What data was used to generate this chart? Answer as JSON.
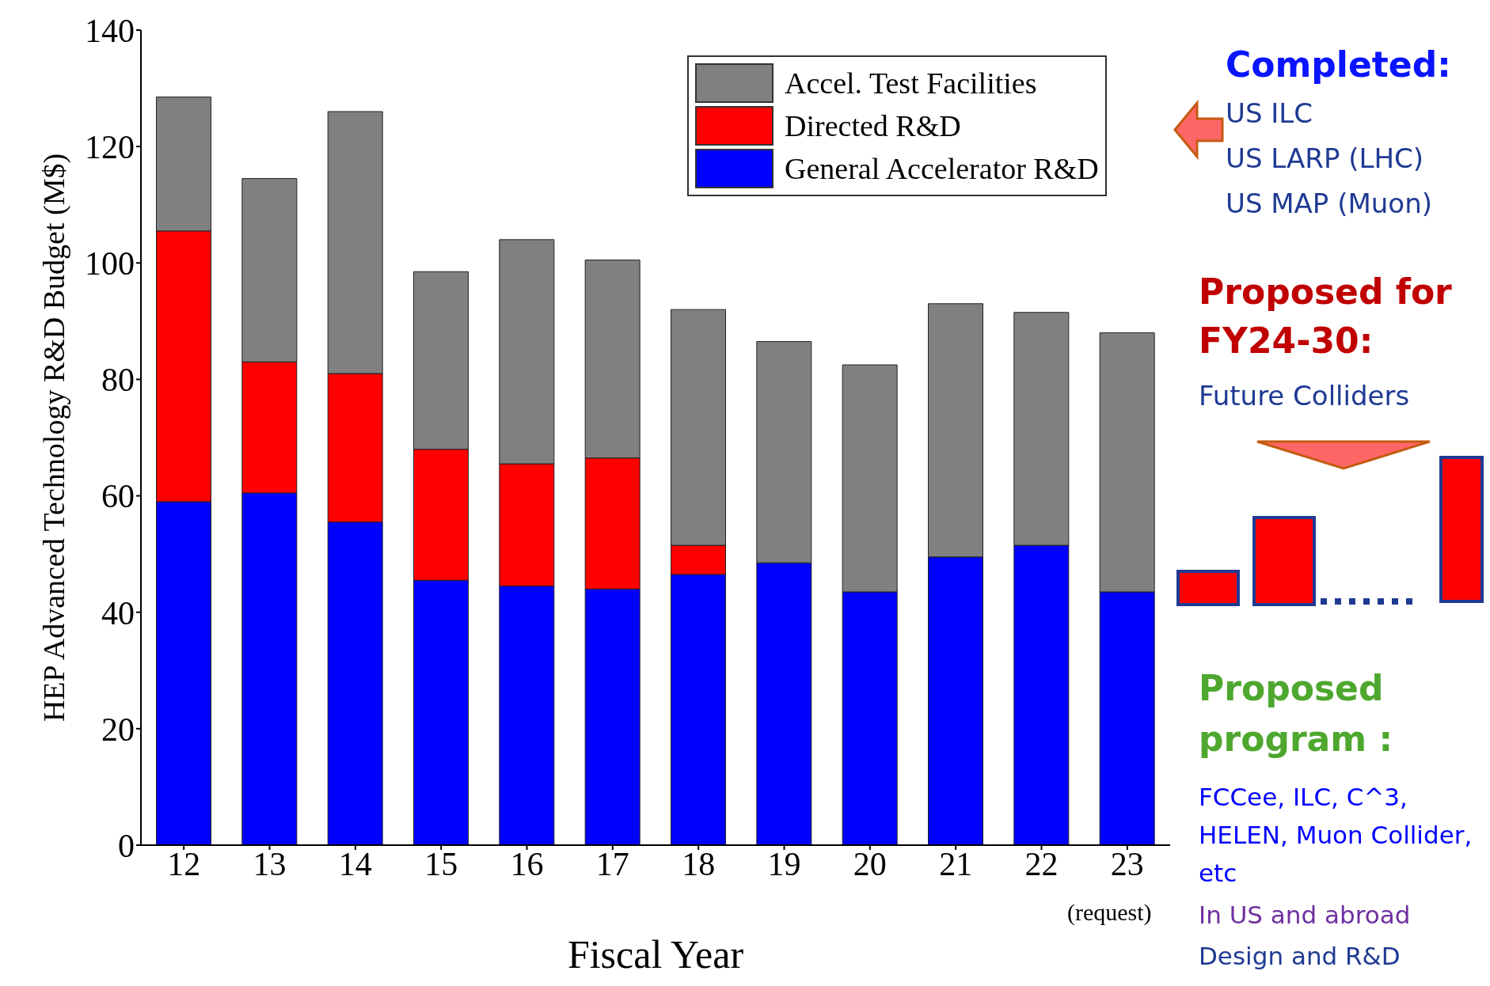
{
  "chart_data": {
    "type": "bar",
    "stacked": true,
    "xlabel": "Fiscal Year",
    "ylabel": "HEP Advanced Technology R&D Budget  (M$)",
    "categories": [
      "12",
      "13",
      "14",
      "15",
      "16",
      "17",
      "18",
      "19",
      "20",
      "21",
      "22",
      "23"
    ],
    "series": [
      {
        "name": "General Accelerator R&D",
        "color": "#0000ff",
        "values": [
          59,
          60.5,
          55.5,
          45.5,
          44.5,
          44,
          46.5,
          48.5,
          43.5,
          49.5,
          51.5,
          43.5
        ]
      },
      {
        "name": "Directed R&D",
        "color": "#ff0000",
        "values": [
          46.5,
          22.5,
          25.5,
          22.5,
          21,
          22.5,
          5,
          0,
          0,
          0,
          0,
          0
        ]
      },
      {
        "name": "Accel. Test Facilities",
        "color": "#808080",
        "values": [
          23,
          31.5,
          45,
          30.5,
          38.5,
          34,
          40.5,
          38,
          39,
          43.5,
          40,
          44.5
        ]
      }
    ],
    "ylim": [
      0,
      140
    ],
    "yticks": [
      0,
      20,
      40,
      60,
      80,
      100,
      120,
      140
    ],
    "grid": false,
    "legend": "top right",
    "annotations": [
      "(request)",
      "Completed:",
      "US ILC",
      "US LARP (LHC)",
      "US MAP (Muon)",
      "Proposed for FY24-30:",
      "Future Colliders",
      "Proposed program :",
      "FCCee, ILC, C^3, HELEN, Muon Collider, etc",
      "In US and abroad",
      "Design and R&D"
    ]
  }
}
